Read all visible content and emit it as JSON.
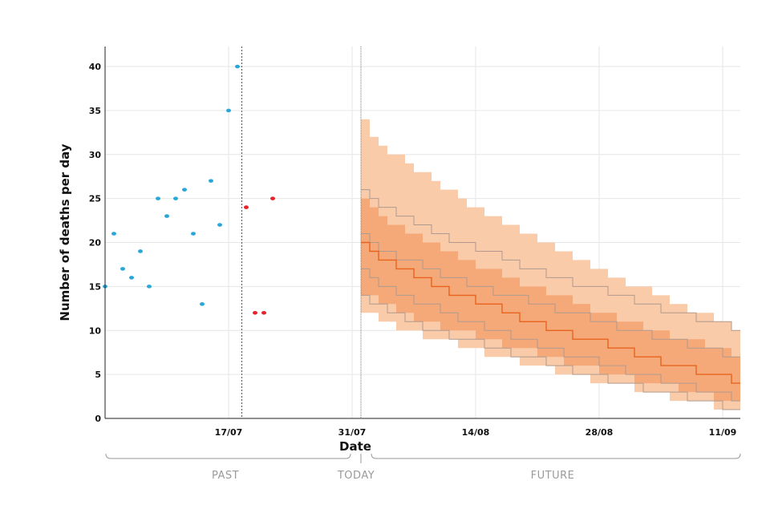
{
  "chart_data": {
    "type": "scatter",
    "xlabel": "Date",
    "ylabel": "Number of deaths per day",
    "x_ticks": [
      "17/07",
      "31/07",
      "14/08",
      "28/08",
      "11/09"
    ],
    "y_ticks": [
      "0",
      "5",
      "10",
      "15",
      "20",
      "25",
      "30",
      "35",
      "40"
    ],
    "ylim": [
      0,
      42
    ],
    "xlim": [
      "2020-07-03",
      "2020-09-13"
    ],
    "grid": true,
    "observed": {
      "color": "#29a8d8",
      "points": [
        {
          "x": "2020-07-03",
          "y": 15
        },
        {
          "x": "2020-07-04",
          "y": 21
        },
        {
          "x": "2020-07-05",
          "y": 17
        },
        {
          "x": "2020-07-06",
          "y": 16
        },
        {
          "x": "2020-07-07",
          "y": 19
        },
        {
          "x": "2020-07-08",
          "y": 15
        },
        {
          "x": "2020-07-09",
          "y": 25
        },
        {
          "x": "2020-07-10",
          "y": 23
        },
        {
          "x": "2020-07-11",
          "y": 25
        },
        {
          "x": "2020-07-12",
          "y": 26
        },
        {
          "x": "2020-07-13",
          "y": 21
        },
        {
          "x": "2020-07-14",
          "y": 13
        },
        {
          "x": "2020-07-15",
          "y": 27
        },
        {
          "x": "2020-07-16",
          "y": 22
        },
        {
          "x": "2020-07-17",
          "y": 35
        },
        {
          "x": "2020-07-18",
          "y": 40
        }
      ]
    },
    "recent": {
      "color": "#e8202a",
      "points": [
        {
          "x": "2020-07-19",
          "y": 24
        },
        {
          "x": "2020-07-20",
          "y": 12
        },
        {
          "x": "2020-07-21",
          "y": 12
        },
        {
          "x": "2020-07-22",
          "y": 25
        }
      ]
    },
    "data_cutoff_date": "2020-07-18",
    "today_date": "2020-08-01",
    "forecast": {
      "start": "2020-08-01",
      "end": "2020-09-13",
      "median_color": "#e8641e",
      "outer_band_color": "#f9cba9",
      "inner_band_color": "#f5a878",
      "line_color": "#b09a8e",
      "median": [
        20,
        4
      ],
      "upper_outer": [
        34,
        10
      ],
      "lower_outer": [
        13,
        1
      ],
      "upper_inner": [
        25,
        7
      ],
      "lower_inner": [
        15,
        2
      ],
      "upper_line": [
        26,
        10
      ],
      "lower_line": [
        14,
        1
      ],
      "upper_mid": [
        21,
        7
      ],
      "lower_mid": [
        17,
        2
      ]
    },
    "periods": {
      "past": "PAST",
      "today": "TODAY",
      "future": "FUTURE"
    }
  }
}
